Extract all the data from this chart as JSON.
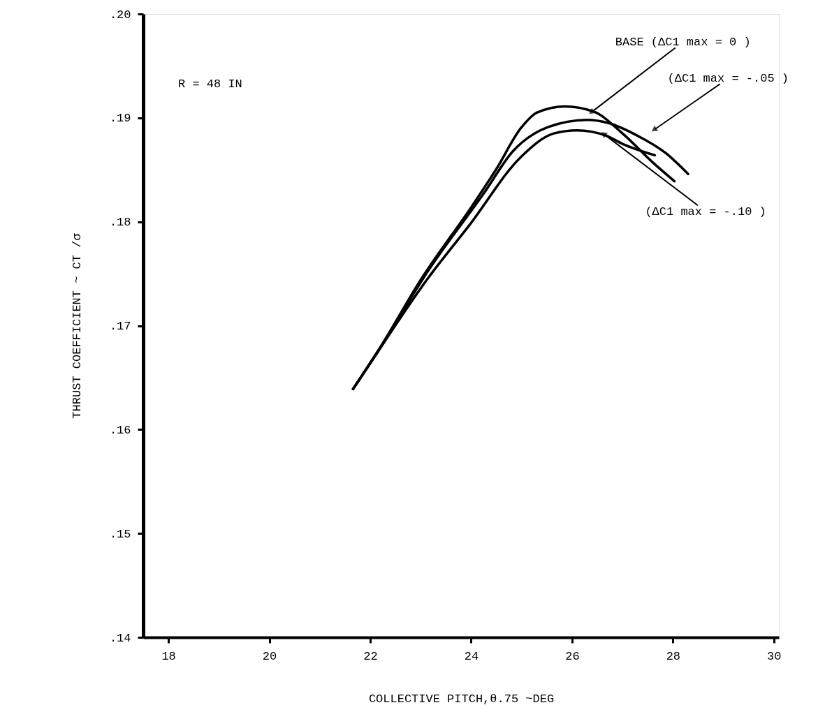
{
  "chart_data": {
    "type": "line",
    "xlabel": "COLLECTIVE PITCH,θ.75 ~DEG",
    "ylabel": "THRUST COEFFICIENT ~ CT /σ",
    "xlim": [
      17.5,
      30.1
    ],
    "ylim": [
      0.14,
      0.2
    ],
    "xticks": [
      {
        "value": 18,
        "label": "18"
      },
      {
        "value": 20,
        "label": "20"
      },
      {
        "value": 22,
        "label": "22"
      },
      {
        "value": 24,
        "label": "24"
      },
      {
        "value": 26,
        "label": "26"
      },
      {
        "value": 28,
        "label": "28"
      },
      {
        "value": 30,
        "label": "30"
      }
    ],
    "yticks": [
      {
        "value": 0.14,
        "label": ".14"
      },
      {
        "value": 0.15,
        "label": ".15"
      },
      {
        "value": 0.16,
        "label": ".16"
      },
      {
        "value": 0.17,
        "label": ".17"
      },
      {
        "value": 0.18,
        "label": ".18"
      },
      {
        "value": 0.19,
        "label": ".19"
      },
      {
        "value": 0.2,
        "label": ".20"
      }
    ],
    "grid": false,
    "marker": "none",
    "line_style": "solid",
    "series": [
      {
        "color": "#000000",
        "x": [
          21.66,
          22.26,
          23.0,
          24.03,
          24.49,
          25.0,
          25.3,
          25.86,
          26.43,
          27.0,
          27.58,
          28.03
        ],
        "values": [
          0.1639,
          0.1684,
          0.1744,
          0.1816,
          0.185,
          0.1891,
          0.1905,
          0.1911,
          0.1906,
          0.1885,
          0.1858,
          0.1839
        ]
      },
      {
        "color": "#000000",
        "x": [
          21.66,
          22.26,
          23.11,
          24.26,
          24.83,
          25.52,
          26.3,
          26.72,
          27.29,
          27.86,
          28.3
        ],
        "values": [
          0.1639,
          0.1683,
          0.175,
          0.1828,
          0.1868,
          0.1891,
          0.1898,
          0.1895,
          0.1883,
          0.1866,
          0.1846
        ]
      },
      {
        "color": "#000000",
        "x": [
          21.66,
          22.26,
          23.12,
          23.97,
          25.0,
          25.64,
          26.1,
          26.67,
          27.0,
          27.64
        ],
        "values": [
          0.1639,
          0.1683,
          0.1744,
          0.1797,
          0.1863,
          0.1885,
          0.1888,
          0.1883,
          0.1875,
          0.1864
        ]
      }
    ],
    "annotations": [
      "R = 48 IN",
      {
        "text": "BASE (ΔC1 max = 0 )",
        "x": 26.4,
        "y": 0.1906
      },
      {
        "text": "(ΔC1 max = -.05 )",
        "x": 27.64,
        "y": 0.1889
      },
      {
        "text": "(ΔC1 max = -.10 )",
        "x": 26.64,
        "y": 0.1884
      }
    ]
  }
}
